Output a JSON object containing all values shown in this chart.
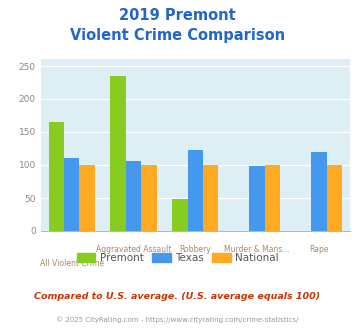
{
  "title_line1": "2019 Premont",
  "title_line2": "Violent Crime Comparison",
  "categories_top": [
    "",
    "Aggravated Assault",
    "Robbery",
    "Murder & Mans...",
    "Rape"
  ],
  "categories_bot": [
    "All Violent Crime",
    "",
    "",
    "",
    ""
  ],
  "premont": [
    165,
    235,
    49,
    0,
    0
  ],
  "texas": [
    110,
    106,
    123,
    98,
    120
  ],
  "national": [
    100,
    100,
    100,
    100,
    100
  ],
  "color_premont": "#88cc22",
  "color_texas": "#4499ee",
  "color_national": "#ffaa22",
  "ylim": [
    0,
    260
  ],
  "yticks": [
    0,
    50,
    100,
    150,
    200,
    250
  ],
  "bg_color": "#ddeef5",
  "title_color": "#2266cc",
  "footer_text": "Compared to U.S. average. (U.S. average equals 100)",
  "footer_color": "#cc3300",
  "copyright_text": "© 2025 CityRating.com - https://www.cityrating.com/crime-statistics/",
  "copyright_color": "#999999",
  "xlabel_color": "#aa8866",
  "legend_label_color": "#555555",
  "legend_labels": [
    "Premont",
    "Texas",
    "National"
  ],
  "ytick_color": "#888888",
  "bar_width": 0.25
}
